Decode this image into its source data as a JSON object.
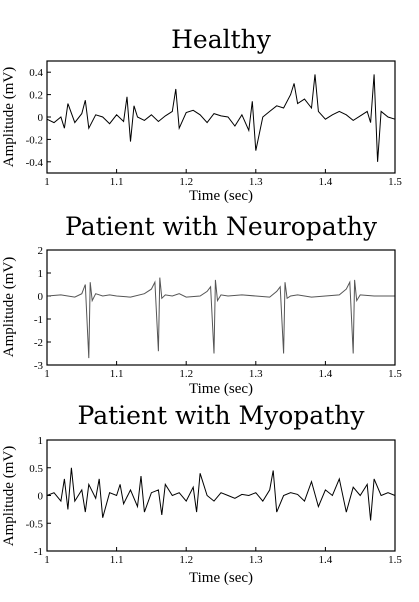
{
  "chart_data": [
    {
      "type": "line",
      "title": "Healthy",
      "xlabel": "Time (sec)",
      "ylabel": "Amplitude (mV)",
      "xlim": [
        1,
        1.5
      ],
      "ylim": [
        -0.5,
        0.5
      ],
      "xticks": [
        1,
        1.1,
        1.2,
        1.3,
        1.4,
        1.5
      ],
      "xtick_labels": [
        "1",
        "1.1",
        "1.2",
        "1.3",
        "1.4",
        "1.5"
      ],
      "yticks": [
        -0.4,
        -0.2,
        0,
        0.2,
        0.4
      ],
      "ytick_labels": [
        "-0.4",
        "-0.2",
        "0",
        "0.2",
        "0.4"
      ],
      "line_color": "#000000",
      "series": [
        {
          "x": [
            1.0,
            1.01,
            1.02,
            1.025,
            1.03,
            1.04,
            1.05,
            1.055,
            1.06,
            1.07,
            1.08,
            1.09,
            1.1,
            1.11,
            1.115,
            1.12,
            1.125,
            1.13,
            1.14,
            1.15,
            1.16,
            1.17,
            1.18,
            1.185,
            1.19,
            1.2,
            1.21,
            1.22,
            1.23,
            1.24,
            1.25,
            1.26,
            1.27,
            1.28,
            1.29,
            1.295,
            1.3,
            1.31,
            1.32,
            1.33,
            1.34,
            1.35,
            1.355,
            1.36,
            1.37,
            1.38,
            1.385,
            1.39,
            1.4,
            1.41,
            1.42,
            1.43,
            1.44,
            1.45,
            1.46,
            1.465,
            1.47,
            1.475,
            1.48,
            1.49,
            1.5
          ],
          "y": [
            -0.02,
            -0.05,
            0.0,
            -0.1,
            0.12,
            -0.05,
            0.03,
            0.15,
            -0.1,
            0.02,
            0.0,
            -0.06,
            0.02,
            -0.04,
            0.18,
            -0.22,
            0.1,
            0.0,
            -0.03,
            0.02,
            -0.04,
            0.01,
            0.05,
            0.25,
            -0.1,
            0.04,
            0.06,
            0.02,
            -0.05,
            0.03,
            0.01,
            0.0,
            -0.08,
            0.02,
            -0.12,
            0.14,
            -0.3,
            0.0,
            0.05,
            0.1,
            0.08,
            0.2,
            0.3,
            0.12,
            0.16,
            0.08,
            0.38,
            0.05,
            -0.02,
            0.02,
            0.05,
            0.02,
            -0.03,
            0.01,
            0.05,
            -0.05,
            0.38,
            -0.4,
            0.05,
            0.0,
            -0.02
          ]
        }
      ]
    },
    {
      "type": "line",
      "title": "Patient with Neuropathy",
      "xlabel": "Time (sec)",
      "ylabel": "Amplitude (mV)",
      "xlim": [
        1,
        1.5
      ],
      "ylim": [
        -3,
        2
      ],
      "xticks": [
        1,
        1.1,
        1.2,
        1.3,
        1.4,
        1.5
      ],
      "xtick_labels": [
        "1",
        "1.1",
        "1.2",
        "1.3",
        "1.4",
        "1.5"
      ],
      "yticks": [
        -3,
        -2,
        -1,
        0,
        1,
        2
      ],
      "ytick_labels": [
        "-3",
        "-2",
        "-1",
        "0",
        "1",
        "2"
      ],
      "line_color": "#555555",
      "series": [
        {
          "x": [
            1.0,
            1.02,
            1.04,
            1.05,
            1.055,
            1.06,
            1.062,
            1.065,
            1.07,
            1.08,
            1.09,
            1.1,
            1.12,
            1.14,
            1.15,
            1.155,
            1.16,
            1.162,
            1.165,
            1.17,
            1.18,
            1.19,
            1.2,
            1.22,
            1.23,
            1.235,
            1.24,
            1.242,
            1.245,
            1.25,
            1.26,
            1.28,
            1.3,
            1.32,
            1.33,
            1.335,
            1.34,
            1.342,
            1.345,
            1.35,
            1.36,
            1.38,
            1.4,
            1.42,
            1.43,
            1.435,
            1.44,
            1.442,
            1.445,
            1.45,
            1.47,
            1.5
          ],
          "y": [
            0.0,
            0.05,
            -0.05,
            0.1,
            0.5,
            -2.7,
            0.6,
            -0.2,
            0.1,
            0.0,
            0.05,
            0.0,
            -0.05,
            0.1,
            0.3,
            0.6,
            -2.4,
            0.8,
            -0.1,
            0.05,
            0.0,
            0.1,
            -0.05,
            0.0,
            0.2,
            0.4,
            -2.5,
            0.7,
            -0.2,
            0.05,
            0.0,
            0.05,
            0.0,
            -0.05,
            0.2,
            0.4,
            -2.5,
            0.6,
            -0.1,
            0.0,
            0.05,
            -0.05,
            0.0,
            0.05,
            0.3,
            0.6,
            -2.5,
            0.7,
            -0.2,
            0.05,
            0.0,
            0.0
          ]
        }
      ]
    },
    {
      "type": "line",
      "title": "Patient with Myopathy",
      "xlabel": "Time (sec)",
      "ylabel": "Amplitude (mV)",
      "xlim": [
        1,
        1.5
      ],
      "ylim": [
        -1,
        1
      ],
      "xticks": [
        1,
        1.1,
        1.2,
        1.3,
        1.4,
        1.5
      ],
      "xtick_labels": [
        "1",
        "1.1",
        "1.2",
        "1.3",
        "1.4",
        "1.5"
      ],
      "yticks": [
        -1,
        -0.5,
        0,
        0.5,
        1
      ],
      "ytick_labels": [
        "-1",
        "-0.5",
        "0",
        "0.5",
        "1"
      ],
      "line_color": "#000000",
      "series": [
        {
          "x": [
            1.0,
            1.01,
            1.02,
            1.025,
            1.03,
            1.035,
            1.04,
            1.05,
            1.055,
            1.06,
            1.07,
            1.075,
            1.08,
            1.09,
            1.1,
            1.105,
            1.11,
            1.12,
            1.13,
            1.135,
            1.14,
            1.15,
            1.16,
            1.165,
            1.17,
            1.18,
            1.19,
            1.2,
            1.21,
            1.215,
            1.22,
            1.23,
            1.24,
            1.25,
            1.26,
            1.27,
            1.28,
            1.29,
            1.3,
            1.31,
            1.32,
            1.325,
            1.33,
            1.34,
            1.35,
            1.36,
            1.37,
            1.38,
            1.39,
            1.4,
            1.41,
            1.42,
            1.43,
            1.44,
            1.45,
            1.46,
            1.465,
            1.47,
            1.48,
            1.49,
            1.5
          ],
          "y": [
            0.0,
            0.05,
            -0.1,
            0.3,
            -0.25,
            0.5,
            -0.1,
            0.1,
            -0.3,
            0.2,
            -0.05,
            0.3,
            -0.4,
            0.05,
            0.0,
            0.2,
            -0.15,
            0.1,
            -0.2,
            0.35,
            -0.3,
            0.05,
            0.1,
            -0.35,
            0.2,
            0.0,
            0.05,
            -0.1,
            0.15,
            -0.3,
            0.4,
            0.0,
            -0.1,
            0.05,
            0.0,
            -0.05,
            0.02,
            0.0,
            0.05,
            -0.1,
            0.1,
            0.45,
            -0.3,
            0.0,
            0.05,
            0.02,
            -0.1,
            0.25,
            -0.2,
            0.1,
            0.0,
            0.3,
            -0.3,
            0.15,
            0.0,
            0.2,
            -0.45,
            0.3,
            0.0,
            0.05,
            0.0
          ]
        }
      ]
    }
  ]
}
